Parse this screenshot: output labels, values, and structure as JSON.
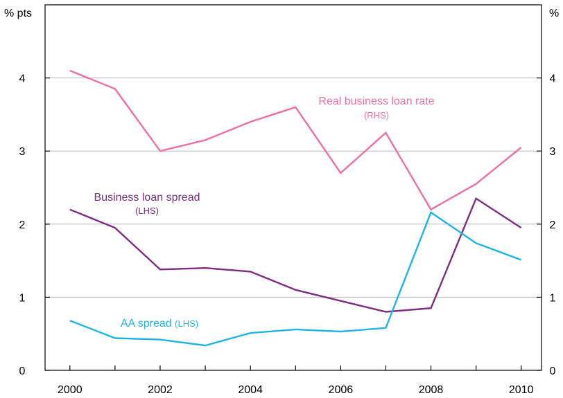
{
  "chart_data": {
    "type": "line",
    "x": [
      2000,
      2001,
      2002,
      2003,
      2004,
      2005,
      2006,
      2007,
      2008,
      2009,
      2010
    ],
    "xlim": [
      1999.45,
      2010.45
    ],
    "x_ticks": [
      "2000",
      "2002",
      "2004",
      "2006",
      "2008",
      "2010"
    ],
    "left_axis": {
      "unit": "% pts",
      "ylim": [
        0,
        5
      ],
      "ticks": [
        "0",
        "1",
        "2",
        "3",
        "4"
      ]
    },
    "right_axis": {
      "unit": "%",
      "ylim": [
        0,
        5
      ],
      "ticks": [
        "0",
        "1",
        "2",
        "3",
        "4"
      ]
    },
    "grid": true,
    "series": [
      {
        "name": "Real business loan rate",
        "axis_label": "(RHS)",
        "axis": "right",
        "color": "#ee6fa5",
        "values": [
          4.1,
          3.85,
          3.0,
          3.15,
          3.4,
          3.6,
          2.7,
          3.25,
          2.2,
          2.55,
          3.05
        ]
      },
      {
        "name": "Business loan spread",
        "axis_label": "(LHS)",
        "axis": "left",
        "color": "#7e2b83",
        "values": [
          2.2,
          1.95,
          1.38,
          1.4,
          1.35,
          1.1,
          0.95,
          0.8,
          0.85,
          2.35,
          1.95
        ]
      },
      {
        "name": "AA spread",
        "axis_label": "(LHS)",
        "axis": "left",
        "color": "#1eb4e6",
        "values": [
          0.68,
          0.44,
          0.42,
          0.34,
          0.51,
          0.56,
          0.53,
          0.58,
          2.16,
          1.74,
          1.51
        ]
      }
    ]
  }
}
